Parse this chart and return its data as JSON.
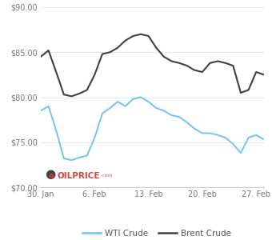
{
  "wti_x": [
    0,
    1,
    2,
    3,
    4,
    5,
    6,
    7,
    8,
    9,
    10,
    11,
    12,
    13,
    14,
    15,
    16,
    17,
    18,
    19,
    20,
    21,
    22,
    23,
    24,
    25,
    26,
    27,
    28,
    29
  ],
  "wti_y": [
    78.5,
    79.0,
    76.3,
    73.2,
    73.0,
    73.3,
    73.5,
    75.5,
    78.2,
    78.8,
    79.5,
    79.0,
    79.8,
    80.0,
    79.5,
    78.8,
    78.5,
    78.0,
    77.8,
    77.2,
    76.5,
    76.0,
    76.0,
    75.8,
    75.5,
    74.8,
    73.8,
    75.5,
    75.8,
    75.3
  ],
  "brent_x": [
    0,
    1,
    2,
    3,
    4,
    5,
    6,
    7,
    8,
    9,
    10,
    11,
    12,
    13,
    14,
    15,
    16,
    17,
    18,
    19,
    20,
    21,
    22,
    23,
    24,
    25,
    26,
    27,
    28,
    29
  ],
  "brent_y": [
    84.5,
    85.2,
    82.8,
    80.3,
    80.1,
    80.4,
    80.8,
    82.5,
    84.8,
    85.0,
    85.5,
    86.3,
    86.8,
    87.0,
    86.8,
    85.5,
    84.5,
    84.0,
    83.8,
    83.5,
    83.0,
    82.8,
    83.8,
    84.0,
    83.8,
    83.5,
    80.5,
    80.8,
    82.8,
    82.5
  ],
  "wti_color": "#70c4f5",
  "brent_color": "#404040",
  "ylim": [
    70,
    90
  ],
  "yticks": [
    70,
    75,
    80,
    85,
    90
  ],
  "ytick_labels": [
    "$70.00",
    "$75.00",
    "$80.00",
    "$85.00",
    "$90.00"
  ],
  "xtick_positions": [
    0,
    7,
    14,
    21,
    28
  ],
  "xtick_labels": [
    "30. Jan",
    "6. Feb",
    "13. Feb",
    "20. Feb",
    "27. Feb"
  ],
  "bg_color": "#ffffff",
  "grid_color": "#e8e8e8",
  "legend_wti": "WTI Crude",
  "legend_brent": "Brent Crude"
}
